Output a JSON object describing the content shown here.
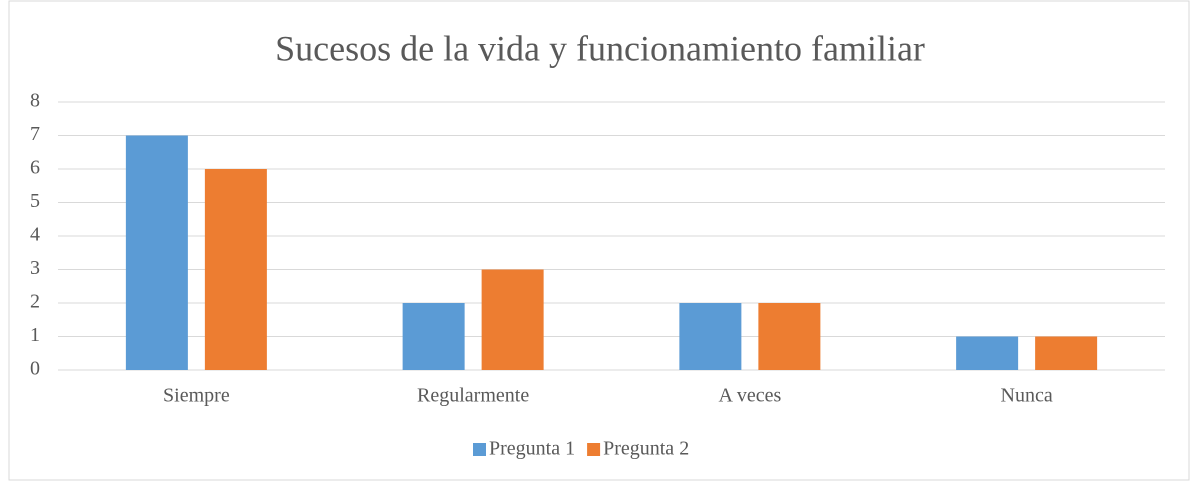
{
  "chart_data": {
    "type": "bar",
    "title": "Sucesos de la vida y funcionamiento familiar",
    "categories": [
      "Siempre",
      "Regularmente",
      "A veces",
      "Nunca"
    ],
    "series": [
      {
        "name": "Pregunta 1",
        "color": "#5b9bd5",
        "values": [
          7,
          2,
          2,
          1
        ]
      },
      {
        "name": "Pregunta 2",
        "color": "#ed7d31",
        "values": [
          6,
          3,
          2,
          1
        ]
      }
    ],
    "ylim": [
      0,
      8
    ],
    "yticks": [
      0,
      1,
      2,
      3,
      4,
      5,
      6,
      7,
      8
    ],
    "grid": true,
    "legend": "bottom"
  }
}
